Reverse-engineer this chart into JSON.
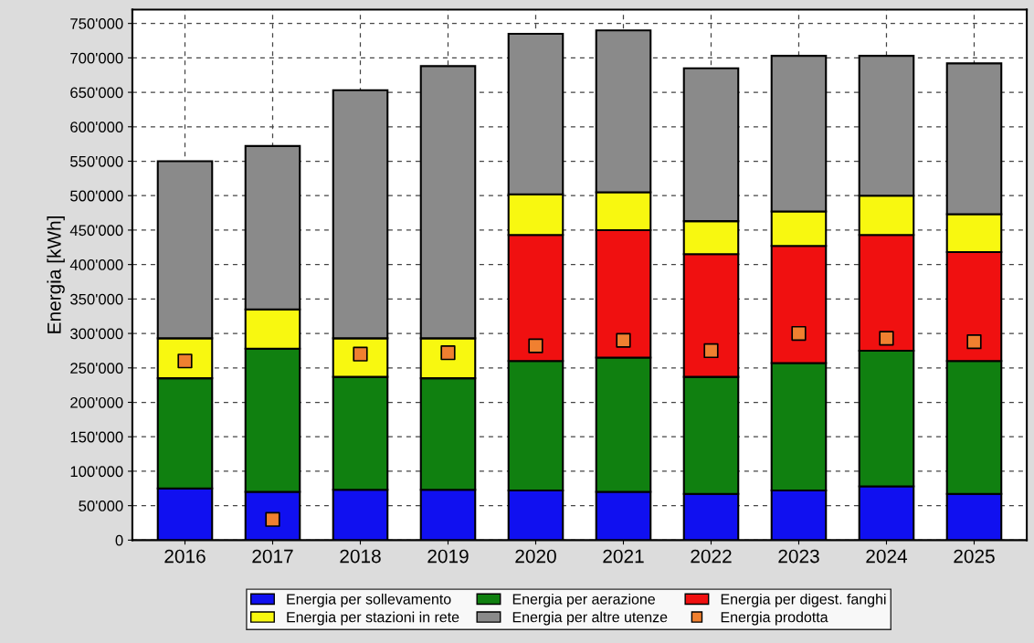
{
  "chart_data": {
    "type": "bar",
    "stacked": true,
    "ylabel": "Energia [kWh]",
    "categories": [
      "2016",
      "2017",
      "2018",
      "2019",
      "2020",
      "2021",
      "2022",
      "2023",
      "2024",
      "2025"
    ],
    "series": [
      {
        "name": "Energia per sollevamento",
        "color": "#1010f0",
        "values": [
          75000,
          70000,
          73000,
          73000,
          72000,
          70000,
          67000,
          72000,
          78000,
          67000
        ]
      },
      {
        "name": "Energia per aerazione",
        "color": "#108010",
        "values": [
          160000,
          208000,
          164000,
          162000,
          188000,
          195000,
          170000,
          185000,
          197000,
          193000
        ]
      },
      {
        "name": "Energia per digest. fanghi",
        "color": "#f01010",
        "values": [
          null,
          null,
          null,
          null,
          183000,
          185000,
          178000,
          170000,
          168000,
          158000
        ]
      },
      {
        "name": "Energia per stazioni in rete",
        "color": "#f8f810",
        "values": [
          58000,
          57000,
          56000,
          58000,
          59000,
          55000,
          48000,
          50000,
          57000,
          55000
        ]
      },
      {
        "name": "Energia per altre utenze",
        "color": "#8a8a8a",
        "values": [
          257000,
          237000,
          360000,
          395000,
          233000,
          235000,
          222000,
          226000,
          203000,
          219000
        ]
      },
      {
        "name": "Energia prodotta",
        "type": "scatter",
        "color": "#f08030",
        "values": [
          260000,
          30000,
          270000,
          272000,
          282000,
          290000,
          275000,
          300000,
          293000,
          288000
        ]
      }
    ],
    "ylim": [
      0,
      770000
    ],
    "yticks": [
      {
        "value": 0,
        "label": "0"
      },
      {
        "value": 50000,
        "label": "50'000"
      },
      {
        "value": 100000,
        "label": "100'000"
      },
      {
        "value": 150000,
        "label": "150'000"
      },
      {
        "value": 200000,
        "label": "200'000"
      },
      {
        "value": 250000,
        "label": "250'000"
      },
      {
        "value": 300000,
        "label": "300'000"
      },
      {
        "value": 350000,
        "label": "350'000"
      },
      {
        "value": 400000,
        "label": "400'000"
      },
      {
        "value": 450000,
        "label": "450'000"
      },
      {
        "value": 500000,
        "label": "500'000"
      },
      {
        "value": 550000,
        "label": "550'000"
      },
      {
        "value": 600000,
        "label": "600'000"
      },
      {
        "value": 650000,
        "label": "650'000"
      },
      {
        "value": 700000,
        "label": "700'000"
      },
      {
        "value": 750000,
        "label": "750'000"
      }
    ],
    "grid": true,
    "legend": "bottom",
    "marker": "square"
  }
}
